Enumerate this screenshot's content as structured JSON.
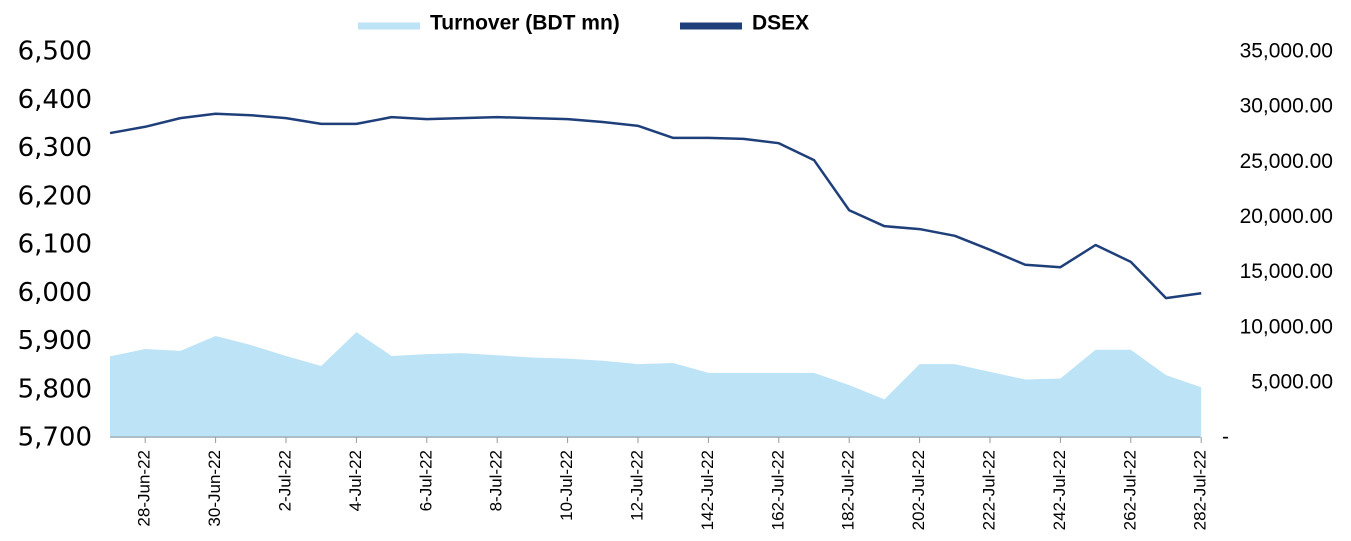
{
  "chart_data": {
    "type": "line",
    "categories": [
      null,
      "28-Jun-22",
      null,
      "30-Jun-22",
      null,
      "2-Jul-22",
      null,
      "4-Jul-22",
      null,
      "6-Jul-22",
      null,
      "8-Jul-22",
      null,
      "10-Jul-22",
      null,
      "12-Jul-22",
      null,
      "142-Jul-22",
      null,
      "162-Jul-22",
      null,
      "182-Jul-22",
      null,
      "202-Jul-22",
      null,
      "222-Jul-22",
      null,
      "242-Jul-22",
      null,
      "262-Jul-22",
      null,
      "282-Jul-22"
    ],
    "series": [
      {
        "name": "Turnover (BDT mn)",
        "type": "area",
        "axis": "y2",
        "color": "#bde3f7",
        "values": [
          7400,
          8070,
          7900,
          9250,
          8430,
          7440,
          6530,
          9600,
          7440,
          7600,
          7700,
          7500,
          7300,
          7200,
          7000,
          6700,
          6800,
          5900,
          5900,
          5900,
          5900,
          4800,
          3500,
          6700,
          6700,
          6000,
          5300,
          5400,
          8000,
          8000,
          5700,
          4600
        ]
      },
      {
        "name": "DSEX",
        "type": "line",
        "axis": "y",
        "color": "#1f3f7a",
        "values": [
          6332,
          6345,
          6363,
          6372,
          6369,
          6363,
          6351,
          6351,
          6365,
          6361,
          6363,
          6365,
          6363,
          6361,
          6355,
          6347,
          6322,
          6322,
          6320,
          6311,
          6276,
          6172,
          6139,
          6133,
          6119,
          6090,
          6059,
          6054,
          6100,
          6065,
          5990,
          6000
        ]
      }
    ],
    "ylim": [
      5700,
      6500
    ],
    "yticks": [
      {
        "value": 5700,
        "label": "5,700"
      },
      {
        "value": 5800,
        "label": "5,800"
      },
      {
        "value": 5900,
        "label": "5,900"
      },
      {
        "value": 6000,
        "label": "6,000"
      },
      {
        "value": 6100,
        "label": "6,100"
      },
      {
        "value": 6200,
        "label": "6,200"
      },
      {
        "value": 6300,
        "label": "6,300"
      },
      {
        "value": 6400,
        "label": "6,400"
      },
      {
        "value": 6500,
        "label": "6,500"
      }
    ],
    "y2lim": [
      0,
      35000
    ],
    "y2ticks": [
      {
        "value": 0,
        "label": "-"
      },
      {
        "value": 5000,
        "label": "5,000.00"
      },
      {
        "value": 10000,
        "label": "10,000.00"
      },
      {
        "value": 15000,
        "label": "15,000.00"
      },
      {
        "value": 20000,
        "label": "20,000.00"
      },
      {
        "value": 25000,
        "label": "25,000.00"
      },
      {
        "value": 30000,
        "label": "30,000.00"
      },
      {
        "value": 35000,
        "label": "35,000.00"
      }
    ]
  }
}
